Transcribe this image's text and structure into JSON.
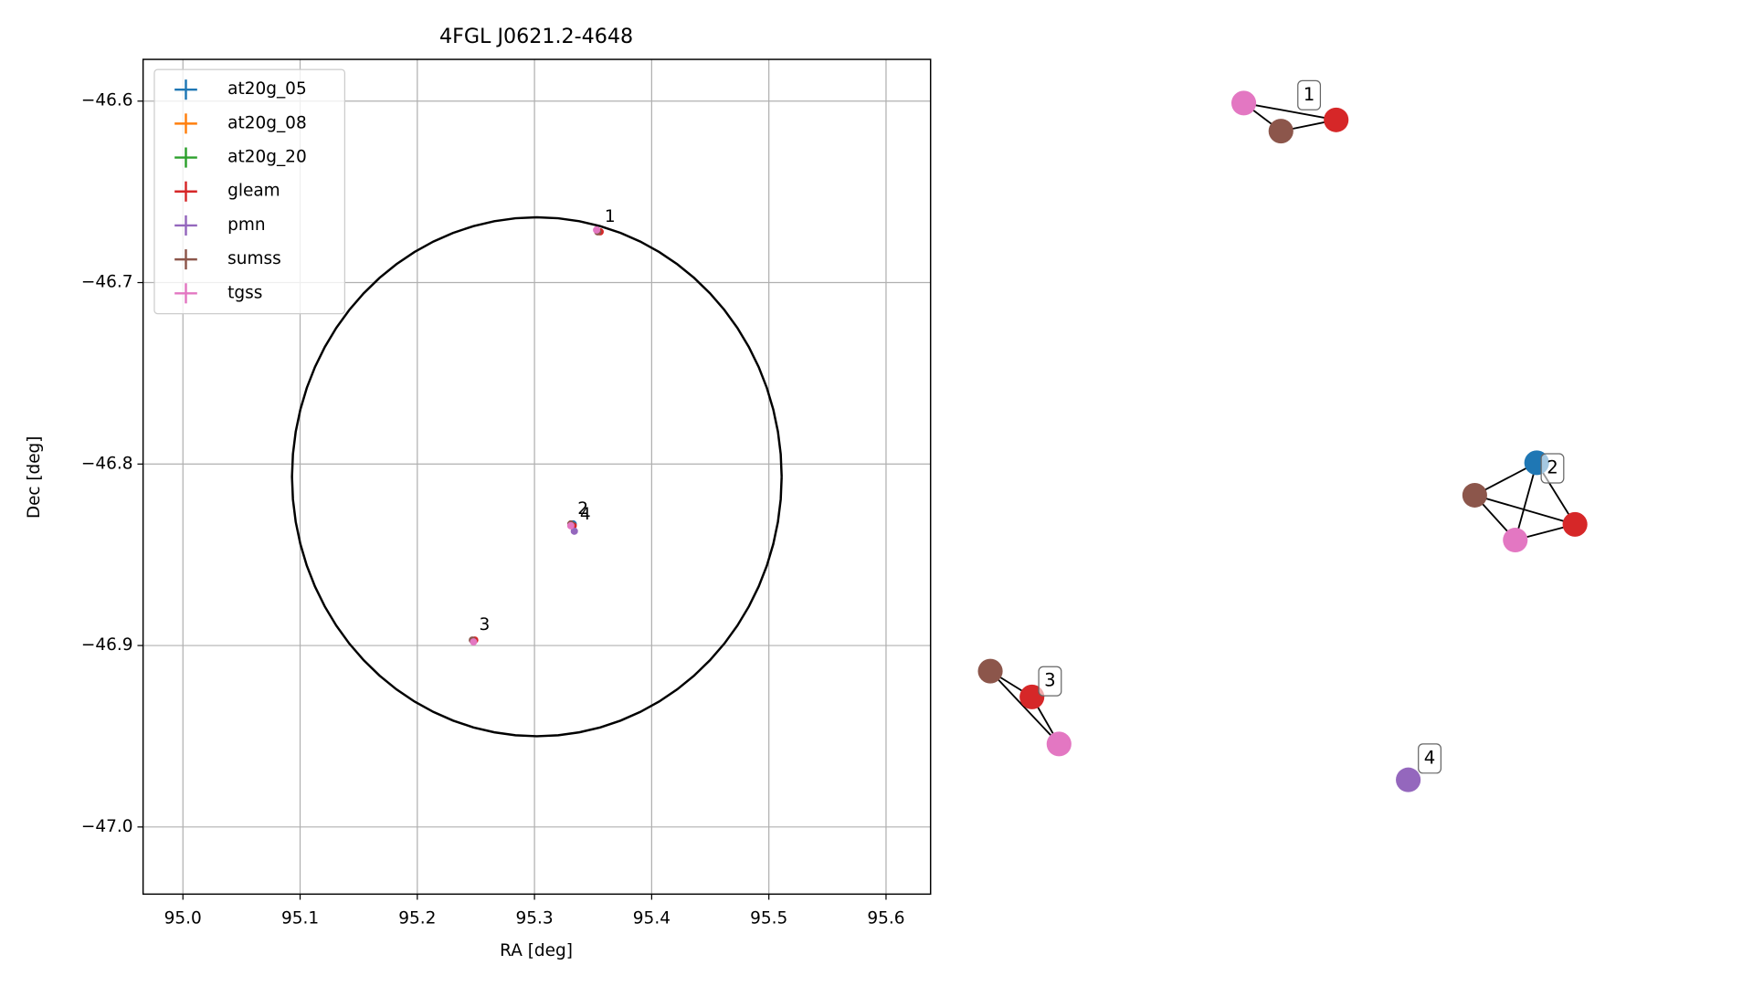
{
  "chart_data": {
    "type": "scatter",
    "title": "4FGL J0621.2-4648",
    "x_label": "RA [deg]",
    "y_label": "Dec [deg]",
    "xlim": [
      94.966,
      95.638
    ],
    "ylim": [
      -47.037,
      -46.577
    ],
    "xticks": [
      {
        "value": 95,
        "label": "95.0"
      },
      95.1,
      95.2,
      95.3,
      95.4,
      95.5,
      95.6
    ],
    "yticks": [
      {
        "value": -46.6,
        "label": "−46.6"
      },
      {
        "value": -46.7,
        "label": "−46.7"
      },
      {
        "value": -46.8,
        "label": "−46.8"
      },
      {
        "value": -46.9,
        "label": "−46.9"
      },
      {
        "value": -47.0,
        "label": "−47.0"
      }
    ],
    "grid": true,
    "legend": "upper left",
    "region": {
      "ra": 95.302,
      "dec": -46.807,
      "radius": 0.143,
      "color": "#000000"
    },
    "series": [
      {
        "name": "at20g_05",
        "color": "#1f77b4",
        "x": [
          95.333
        ],
        "y": [
          -46.833
        ]
      },
      {
        "name": "at20g_08",
        "color": "#ff7f0e",
        "x": [],
        "y": []
      },
      {
        "name": "at20g_20",
        "color": "#2ca02c",
        "x": [],
        "y": []
      },
      {
        "name": "gleam",
        "color": "#d62728",
        "x": [
          95.356,
          95.333,
          95.249
        ],
        "y": [
          -46.672,
          -46.834,
          -46.897
        ]
      },
      {
        "name": "pmn",
        "color": "#9467bd",
        "x": [
          95.334
        ],
        "y": [
          -46.837
        ]
      },
      {
        "name": "sumss",
        "color": "#8c564b",
        "x": [
          95.354,
          95.331,
          95.247
        ],
        "y": [
          -46.672,
          -46.833,
          -46.897
        ]
      },
      {
        "name": "tgss",
        "color": "#e377c2",
        "x": [
          95.353,
          95.331,
          95.248
        ],
        "y": [
          -46.671,
          -46.834,
          -46.898
        ]
      }
    ],
    "annotations": [
      {
        "text": "1",
        "x": 95.355,
        "y": -46.672
      },
      {
        "text": "2",
        "x": 95.332,
        "y": -46.833
      },
      {
        "text": "4",
        "x": 95.334,
        "y": -46.836
      },
      {
        "text": "3",
        "x": 95.248,
        "y": -46.897
      }
    ],
    "graph": {
      "clusters": [
        {
          "label": "1",
          "nodes": [
            "tgss",
            "sumss",
            "gleam"
          ]
        },
        {
          "label": "2",
          "nodes": [
            "at20g_05",
            "sumss",
            "gleam",
            "tgss"
          ]
        },
        {
          "label": "3",
          "nodes": [
            "sumss",
            "gleam",
            "tgss"
          ]
        },
        {
          "label": "4",
          "nodes": [
            "pmn"
          ]
        }
      ]
    }
  }
}
